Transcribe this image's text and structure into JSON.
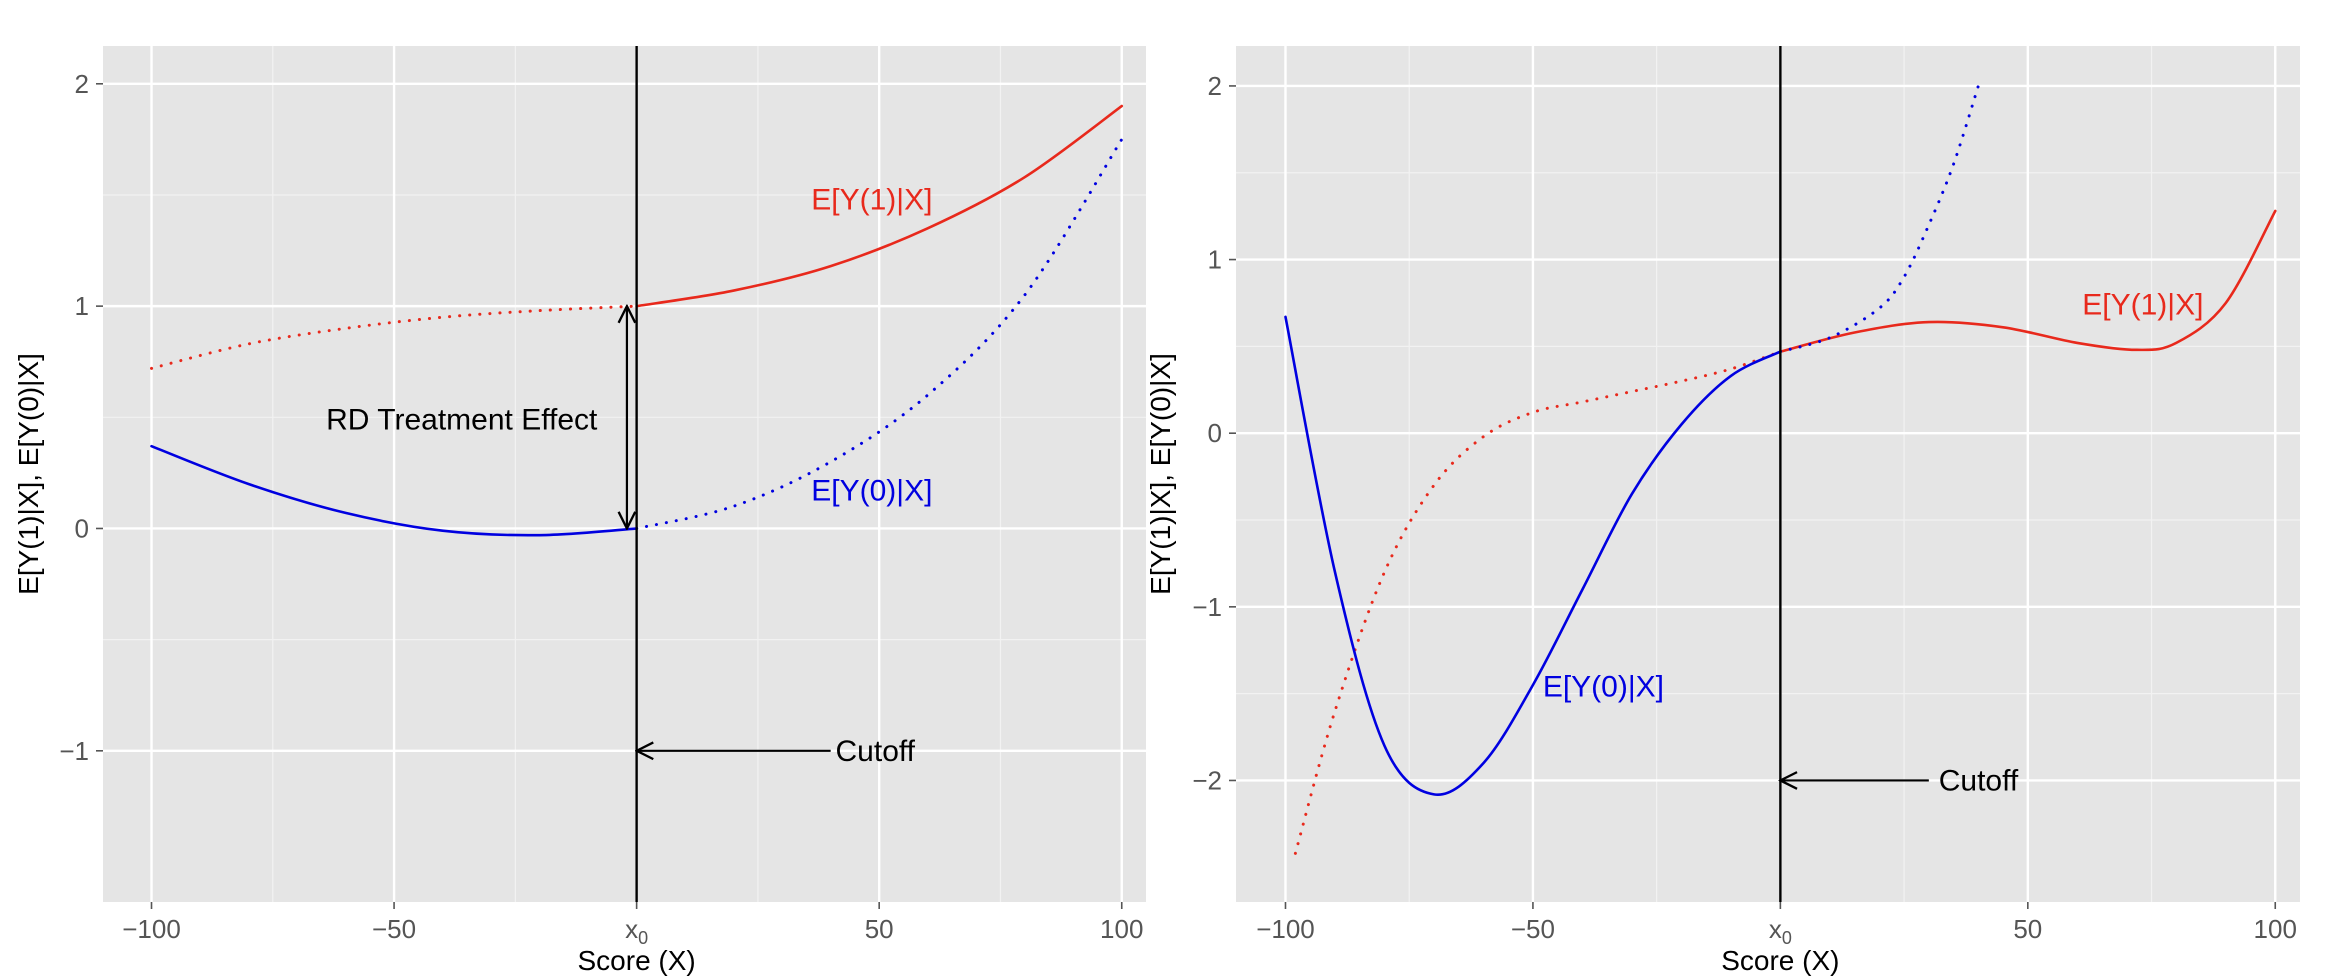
{
  "chart_data": [
    {
      "type": "line",
      "title": "",
      "xlabel": "Score (X)",
      "ylabel": "E[Y(1)|X], E[Y(0)|X]",
      "xlim": [
        -110,
        105
      ],
      "ylim": [
        -1.68,
        2.17
      ],
      "xticks": [
        -100,
        -50,
        0,
        50,
        100
      ],
      "xtick_labels": [
        "−100",
        "−50",
        "x0",
        "50",
        "100"
      ],
      "yticks": [
        -1,
        0,
        1,
        2
      ],
      "ytick_labels": [
        "−1",
        "0",
        "1",
        "2"
      ],
      "grid": true,
      "cutoff_x": 0,
      "series": [
        {
          "name": "E[Y(1)|X]",
          "color": "#E8291C",
          "segments": [
            {
              "style": "dotted",
              "x": [
                -100,
                -80,
                -60,
                -40,
                -20,
                0
              ],
              "y": [
                0.72,
                0.83,
                0.9,
                0.95,
                0.98,
                1.0
              ]
            },
            {
              "style": "solid",
              "x": [
                0,
                20,
                40,
                60,
                80,
                100
              ],
              "y": [
                1.0,
                1.07,
                1.18,
                1.35,
                1.58,
                1.9
              ]
            }
          ]
        },
        {
          "name": "E[Y(0)|X]",
          "color": "#0000E0",
          "segments": [
            {
              "style": "solid",
              "x": [
                -100,
                -80,
                -60,
                -40,
                -20,
                0
              ],
              "y": [
                0.37,
                0.2,
                0.07,
                -0.01,
                -0.03,
                0.0
              ]
            },
            {
              "style": "dotted",
              "x": [
                0,
                20,
                40,
                60,
                80,
                100
              ],
              "y": [
                0.0,
                0.1,
                0.3,
                0.6,
                1.05,
                1.75
              ]
            }
          ]
        }
      ],
      "annotations": [
        {
          "text": "E[Y(1)|X]",
          "x": 36,
          "y": 1.48,
          "color": "#E8291C"
        },
        {
          "text": "E[Y(0)|X]",
          "x": 36,
          "y": 0.17,
          "color": "#0000E0"
        },
        {
          "text": "RD Treatment Effect",
          "x": -64,
          "y": 0.49,
          "color": "#000000"
        },
        {
          "text": "Cutoff",
          "x": 41,
          "y": -1.0,
          "color": "#000000"
        }
      ],
      "arrows": [
        {
          "kind": "double",
          "x": -2,
          "y_from": 0.0,
          "y_to": 1.0
        },
        {
          "kind": "left",
          "y": -1.0,
          "x_from": 40,
          "x_to": 0
        }
      ]
    },
    {
      "type": "line",
      "title": "",
      "xlabel": "Score (X)",
      "ylabel": "E[Y(1)|X], E[Y(0)|X]",
      "xlim": [
        -110,
        105
      ],
      "ylim": [
        -2.7,
        2.23
      ],
      "xticks": [
        -100,
        -50,
        0,
        50,
        100
      ],
      "xtick_labels": [
        "−100",
        "−50",
        "x0",
        "50",
        "100"
      ],
      "yticks": [
        -2,
        -1,
        0,
        1,
        2
      ],
      "ytick_labels": [
        "−2",
        "−1",
        "0",
        "1",
        "2"
      ],
      "grid": true,
      "cutoff_x": 0,
      "series": [
        {
          "name": "E[Y(1)|X]",
          "color": "#E8291C",
          "segments": [
            {
              "style": "dotted",
              "x": [
                -98,
                -90,
                -80,
                -70,
                -60,
                -50,
                -40,
                -30,
                -20,
                -10,
                0
              ],
              "y": [
                -2.42,
                -1.6,
                -0.8,
                -0.3,
                -0.02,
                0.12,
                0.18,
                0.24,
                0.3,
                0.37,
                0.47
              ]
            },
            {
              "style": "solid",
              "x": [
                0,
                15,
                30,
                45,
                60,
                72,
                80,
                90,
                100
              ],
              "y": [
                0.47,
                0.58,
                0.64,
                0.61,
                0.52,
                0.48,
                0.52,
                0.75,
                1.28
              ]
            }
          ]
        },
        {
          "name": "E[Y(0)|X]",
          "color": "#0000E0",
          "segments": [
            {
              "style": "solid",
              "x": [
                -100,
                -90,
                -80,
                -70,
                -60,
                -50,
                -40,
                -30,
                -20,
                -10,
                0
              ],
              "y": [
                0.67,
                -0.8,
                -1.8,
                -2.08,
                -1.9,
                -1.45,
                -0.9,
                -0.35,
                0.05,
                0.33,
                0.47
              ]
            },
            {
              "style": "dotted",
              "x": [
                0,
                10,
                20,
                25,
                30,
                35,
                40
              ],
              "y": [
                0.47,
                0.55,
                0.72,
                0.9,
                1.2,
                1.55,
                2.0
              ]
            }
          ]
        }
      ],
      "annotations": [
        {
          "text": "E[Y(1)|X]",
          "x": 61,
          "y": 0.74,
          "color": "#E8291C"
        },
        {
          "text": "E[Y(0)|X]",
          "x": -48,
          "y": -1.46,
          "color": "#0000E0"
        },
        {
          "text": "Cutoff",
          "x": 32,
          "y": -2.0,
          "color": "#000000"
        }
      ],
      "arrows": [
        {
          "kind": "left",
          "y": -2.0,
          "x_from": 30,
          "x_to": 0
        }
      ]
    }
  ]
}
